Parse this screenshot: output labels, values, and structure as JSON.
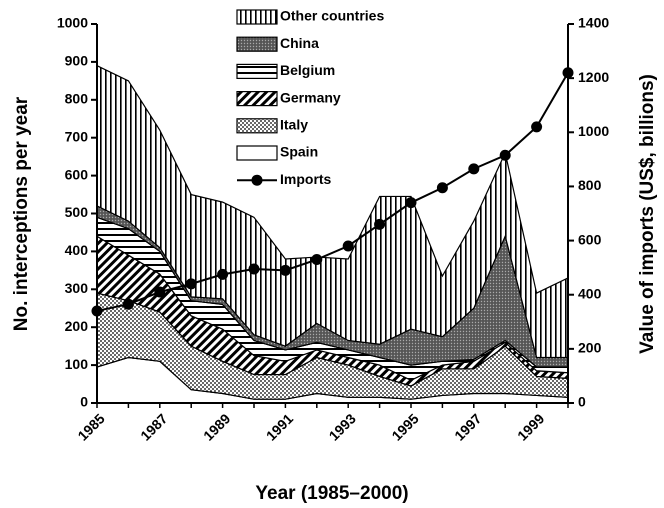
{
  "chart_data": {
    "type": "stacked_area_line",
    "x": [
      1985,
      1986,
      1987,
      1988,
      1989,
      1990,
      1991,
      1992,
      1993,
      1994,
      1995,
      1996,
      1997,
      1998,
      1999,
      2000
    ],
    "xticks": [
      1985,
      1987,
      1989,
      1991,
      1993,
      1995,
      1997,
      1999
    ],
    "xlim": [
      1985,
      2000
    ],
    "ylabel": "No. interceptions per year",
    "y2label": "Value of imports (US$, billions)",
    "xlabel": "Year (1985–2000)",
    "ylim": [
      0,
      1000
    ],
    "yticks": [
      0,
      100,
      200,
      300,
      400,
      500,
      600,
      700,
      800,
      900,
      1000
    ],
    "y2lim": [
      0,
      1400
    ],
    "y2ticks": [
      0,
      200,
      400,
      600,
      800,
      1000,
      1200,
      1400
    ],
    "series": [
      {
        "name": "Spain",
        "color": "#000000",
        "values": [
          95,
          120,
          110,
          35,
          25,
          10,
          10,
          25,
          15,
          15,
          10,
          20,
          25,
          25,
          20,
          15
        ]
      },
      {
        "name": "Italy",
        "color": "#000000",
        "values": [
          195,
          150,
          130,
          115,
          85,
          65,
          65,
          95,
          85,
          55,
          35,
          70,
          65,
          125,
          50,
          50
        ]
      },
      {
        "name": "Germany",
        "color": "#000000",
        "values": [
          150,
          120,
          100,
          80,
          85,
          50,
          35,
          20,
          20,
          30,
          15,
          10,
          20,
          10,
          15,
          15
        ]
      },
      {
        "name": "Belgium",
        "color": "#000000",
        "values": [
          50,
          70,
          60,
          40,
          65,
          40,
          30,
          20,
          20,
          20,
          40,
          10,
          5,
          5,
          10,
          15
        ]
      },
      {
        "name": "China",
        "color": "#000000",
        "values": [
          30,
          20,
          10,
          10,
          15,
          15,
          10,
          50,
          25,
          35,
          95,
          65,
          135,
          275,
          25,
          25
        ]
      },
      {
        "name": "Other countries",
        "color": "#000000",
        "values": [
          370,
          370,
          310,
          270,
          255,
          310,
          230,
          175,
          215,
          390,
          350,
          160,
          230,
          220,
          170,
          210
        ]
      },
      {
        "name": "Imports",
        "color": "#000000",
        "axis": "y2",
        "values": [
          340,
          365,
          410,
          440,
          475,
          495,
          490,
          530,
          580,
          660,
          740,
          795,
          865,
          915,
          1020,
          1220
        ]
      }
    ]
  }
}
